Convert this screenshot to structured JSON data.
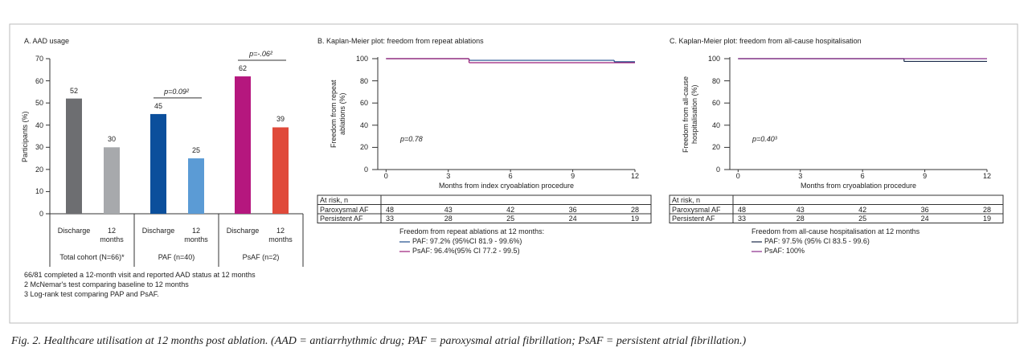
{
  "chart_data": [
    {
      "type": "bar",
      "title": "A. AAD usage",
      "y_label": "Participants (%)",
      "categories": [
        "Discharge",
        "12 months",
        "Discharge",
        "12 months",
        "Discharge",
        "12 months"
      ],
      "values": [
        52,
        30,
        45,
        25,
        62,
        39
      ],
      "colors": [
        "#6d6e71",
        "#a7a9ac",
        "#0b4f9c",
        "#5b9bd5",
        "#b5177e",
        "#e04a3a"
      ],
      "groups": [
        "Total cohort (N=66)*",
        "PAF (n=40)",
        "PsAF (n=2)"
      ],
      "annotations": [
        "p=0.09²",
        "p=-.06²"
      ],
      "ylim": [
        0,
        70
      ],
      "yticks": [
        0,
        10,
        20,
        30,
        40,
        50,
        60,
        70
      ],
      "notes": [
        "66/81 completed a 12-month visit and reported AAD status at 12 months",
        "2 McNemar's test comparing baseline to 12 months",
        "3 Log-rank test comparing PAP and PsAF."
      ]
    },
    {
      "type": "line",
      "step": true,
      "title": "B. Kaplan-Meier plot: freedom from repeat ablations",
      "y_label": "Freedom from repeat ablations (%)",
      "x_label": "Months from index cryoablation procedure",
      "xlim": [
        -0.4,
        12
      ],
      "xticks": [
        0,
        3,
        6,
        9,
        12
      ],
      "ylim": [
        0,
        100
      ],
      "yticks": [
        0,
        20,
        40,
        60,
        80,
        100
      ],
      "annotation": "p=0.78",
      "legend_title": "Freedom from repeat ablations at 12 months:",
      "series": [
        {
          "name": "PAF: 97.2% (95%CI 81.9 - 99.6%)",
          "color": "#1f4e8c",
          "x": [
            0,
            4,
            11
          ],
          "values": [
            100,
            98.5,
            97.2
          ]
        },
        {
          "name": "PsAF: 96.4%(95% CI 77.2 - 99.5)",
          "color": "#9c1f7a",
          "x": [
            0,
            4
          ],
          "values": [
            100,
            96.4
          ]
        }
      ],
      "risk_table": {
        "header": "At risk, n",
        "rows": [
          {
            "label": "Paroxysmal AF",
            "values": [
              48,
              43,
              42,
              36,
              28
            ]
          },
          {
            "label": "Persistent AF",
            "values": [
              33,
              28,
              25,
              24,
              19
            ]
          }
        ]
      }
    },
    {
      "type": "line",
      "step": true,
      "title": "C. Kaplan-Meier plot: freedom from all-cause hospitalisation",
      "y_label": "Freedom from all-cause hospitalisation (%)",
      "x_label": "Months from cryoablation procedure",
      "xlim": [
        -0.4,
        12
      ],
      "xticks": [
        0,
        3,
        6,
        9,
        12
      ],
      "ylim": [
        0,
        100
      ],
      "yticks": [
        0,
        20,
        40,
        60,
        80,
        100
      ],
      "annotation": "p=0.40³",
      "legend_title": "Freedom from all-cause hospitalisation at 12 months",
      "series": [
        {
          "name": "PAF: 97.5% (95% CI 83.5 - 99.6)",
          "color": "#1a2a4a",
          "x": [
            0,
            8
          ],
          "values": [
            100,
            97.5
          ]
        },
        {
          "name": "PsAF: 100%",
          "color": "#8a2b8a",
          "x": [
            0
          ],
          "values": [
            100
          ]
        }
      ],
      "risk_table": {
        "header": "At risk, n",
        "rows": [
          {
            "label": "Paroxysmal AF",
            "values": [
              48,
              43,
              42,
              36,
              28
            ]
          },
          {
            "label": "Persistent AF",
            "values": [
              33,
              28,
              25,
              24,
              19
            ]
          }
        ]
      }
    }
  ],
  "caption": "Fig. 2. Healthcare utilisation at 12 months post ablation. (AAD = antiarrhythmic drug; PAF = paroxysmal atrial fibrillation; PsAF = persistent atrial fibrillation.)"
}
